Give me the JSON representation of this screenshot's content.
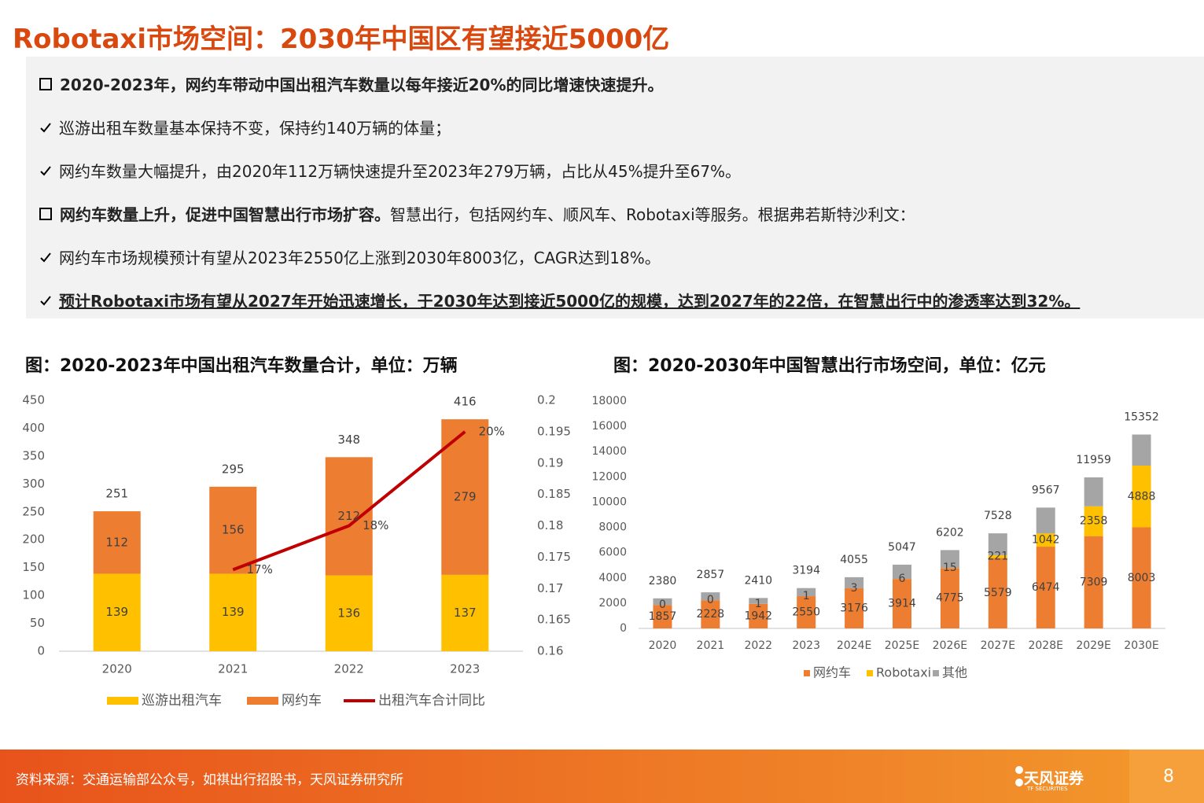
{
  "header": {
    "title": "Robotaxi市场空间：2030年中国区有望接近5000亿"
  },
  "bullets": [
    {
      "text": "2020-2023年，网约车带动中国出租汽车数量以每年接近20%的同比增速快速提升。"
    },
    {
      "text": "巡游出租车数量基本保持不变，保持约140万辆的体量；"
    },
    {
      "text": "网约车数量大幅提升，由2020年112万辆快速提升至2023年279万辆，占比从45%提升至67%。"
    },
    {
      "lead": "网约车数量上升，促进中国智慧出行市场扩容。",
      "text": "智慧出行，包括网约车、顺风车、Robotaxi等服务。根据弗若斯特沙利文："
    },
    {
      "text": "网约车市场规模预计有望从2023年2550亿上涨到2030年8003亿，CAGR达到18%。"
    },
    {
      "text": "预计Robotaxi市场有望从2027年开始迅速增长，于2030年达到接近5000亿的规模，达到2027年的22倍，在智慧出行中的渗透率达到32%。"
    }
  ],
  "chart_data": [
    {
      "type": "bar",
      "stacked": true,
      "grid": false,
      "title": "图：2020-2023年中国出租汽车数量合计，单位：万辆",
      "categories": [
        "2020",
        "2021",
        "2022",
        "2023"
      ],
      "series": [
        {
          "name": "巡游出租汽车",
          "color": "#FFC000",
          "values": [
            139,
            139,
            136,
            137
          ]
        },
        {
          "name": "网约车",
          "color": "#ED7D31",
          "values": [
            112,
            156,
            212,
            279
          ]
        },
        {
          "name": "出租汽车合计同比",
          "color": "#C00000",
          "type": "line",
          "axis": "y2",
          "values": [
            null,
            0.173,
            0.18,
            0.195
          ],
          "value_labels": [
            null,
            "17%",
            "18%",
            "20%"
          ]
        }
      ],
      "totals": [
        251,
        295,
        348,
        416
      ],
      "ylim": [
        0,
        450
      ],
      "yticks": [
        0,
        50,
        100,
        150,
        200,
        250,
        300,
        350,
        400,
        450
      ],
      "y2lim": [
        0.16,
        0.2
      ],
      "y2ticks": [
        0.16,
        0.165,
        0.17,
        0.175,
        0.18,
        0.185,
        0.19,
        0.195,
        0.2
      ],
      "legend": "bottom"
    },
    {
      "type": "bar",
      "stacked": true,
      "grid": false,
      "title": "图：2020-2030年中国智慧出行市场空间，单位：亿元",
      "categories": [
        "2020",
        "2021",
        "2022",
        "2023",
        "2024E",
        "2025E",
        "2026E",
        "2027E",
        "2028E",
        "2029E",
        "2030E"
      ],
      "series": [
        {
          "name": "网约车",
          "color": "#ED7D31",
          "values": [
            1857,
            2228,
            1942,
            2550,
            3176,
            3914,
            4775,
            5579,
            6474,
            7309,
            8003
          ]
        },
        {
          "name": "Robotaxi",
          "color": "#FFC000",
          "values": [
            0,
            0,
            1,
            1,
            3,
            6,
            15,
            221,
            1042,
            2358,
            4888
          ]
        },
        {
          "name": "其他",
          "color": "#A5A5A5",
          "values": [
            523,
            629,
            467,
            643,
            876,
            1127,
            1412,
            1728,
            2051,
            2292,
            2461
          ],
          "labels": false
        }
      ],
      "totals": [
        2380,
        2857,
        2410,
        3194,
        4055,
        5047,
        6202,
        7528,
        9567,
        11959,
        15352
      ],
      "ylim": [
        0,
        18000
      ],
      "yticks": [
        0,
        2000,
        4000,
        6000,
        8000,
        10000,
        12000,
        14000,
        16000,
        18000
      ],
      "legend": "bottom"
    }
  ],
  "footer": {
    "source": "资料来源：交通运输部公众号，如祺出行招股书，天风证券研究所",
    "logo": "天风证券",
    "logo_sub": "TF SECURITIES",
    "page": "8"
  }
}
